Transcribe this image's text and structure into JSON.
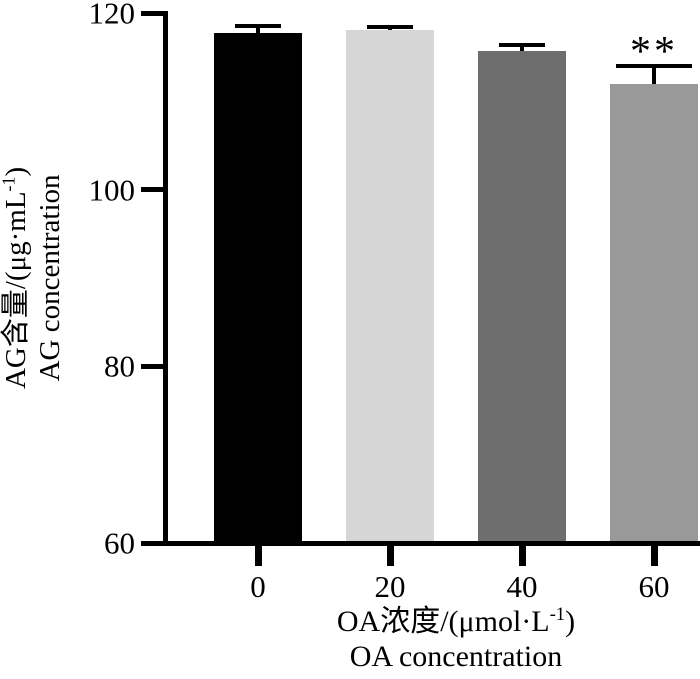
{
  "chart_data": {
    "type": "bar",
    "title": "",
    "categories": [
      "0",
      "20",
      "40",
      "60"
    ],
    "values": [
      117.7,
      118.1,
      115.7,
      112.0
    ],
    "errors": [
      0.8,
      0.3,
      0.7,
      2.0
    ],
    "bar_colors": [
      "#000000",
      "#d6d6d6",
      "#6e6e6e",
      "#999999"
    ],
    "error_cap_widths": [
      46,
      46,
      46,
      76
    ],
    "annotations": [
      {
        "category": "60",
        "text": "**"
      }
    ],
    "xlabel": "OA浓度/(μmol·L⁻¹) OA concentration",
    "ylabel": "AG含量/(μg·mL⁻¹) AG concentration",
    "ylim": [
      60,
      120
    ],
    "yticks": [
      60,
      80,
      100,
      120
    ],
    "grid": false,
    "legend_position": "none"
  },
  "axes": {
    "y": {
      "label_pre": "AG含量/(μg·mL",
      "label_sup": "-1",
      "label_post": ")",
      "label_line2": "AG concentration"
    },
    "x": {
      "label_pre": "OA浓度/(μmol·L",
      "label_sup": "-1",
      "label_post": ")",
      "label_line2": "OA concentration"
    }
  },
  "colors": {
    "axis": "#000000",
    "background": "#ffffff",
    "text": "#000000"
  }
}
